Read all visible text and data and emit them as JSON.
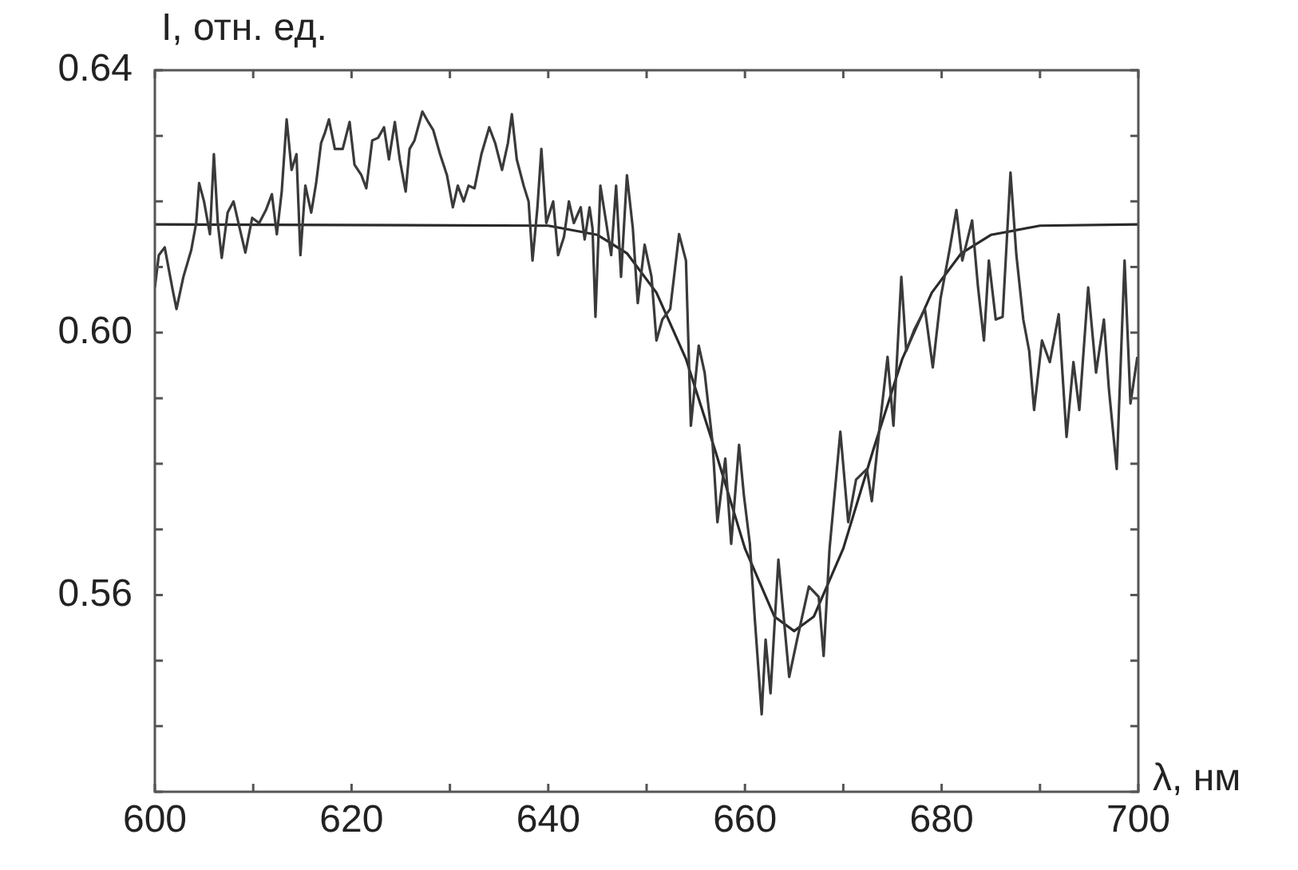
{
  "chart_data": {
    "type": "line",
    "xlabel": "λ, нм",
    "ylabel": "I, отн. ед.",
    "xlim": [
      600,
      700
    ],
    "ylim": [
      0.53,
      0.64
    ],
    "xticks": [
      600,
      {
        "value": 610,
        "label": null
      },
      620,
      {
        "value": 630,
        "label": null
      },
      640,
      {
        "value": 650,
        "label": null
      },
      660,
      {
        "value": 670,
        "label": null
      },
      680,
      {
        "value": 690,
        "label": null
      },
      700
    ],
    "yticks": [
      {
        "value": 0.53,
        "label": null
      },
      {
        "value": 0.54,
        "label": null
      },
      {
        "value": 0.55,
        "label": null
      },
      {
        "value": 0.56,
        "label": "0.56"
      },
      {
        "value": 0.57,
        "label": null
      },
      {
        "value": 0.58,
        "label": null
      },
      {
        "value": 0.59,
        "label": null
      },
      {
        "value": 0.6,
        "label": "0.60"
      },
      {
        "value": 0.61,
        "label": null
      },
      {
        "value": 0.62,
        "label": null
      },
      {
        "value": 0.63,
        "label": null
      },
      {
        "value": 0.64,
        "label": "0.64"
      }
    ],
    "grid": false,
    "legend": false,
    "marker": "none",
    "line_style": "solid",
    "series": [
      {
        "color": "#3a3a3a",
        "x": [
          600,
          600.4,
          601,
          601.8,
          602.2,
          602.9,
          603.7,
          604.2,
          604.5,
          605,
          605.6,
          606,
          606.4,
          606.8,
          607.4,
          608,
          608.5,
          609.2,
          609.9,
          610.6,
          611.3,
          611.9,
          612.4,
          612.9,
          613.4,
          613.9,
          614.4,
          614.8,
          615.3,
          615.9,
          616.4,
          616.9,
          617.3,
          617.7,
          618.3,
          619.1,
          619.8,
          620.3,
          621,
          621.5,
          622.1,
          622.7,
          623.3,
          623.8,
          624.4,
          624.9,
          625.5,
          625.9,
          626.4,
          627.2,
          627.8,
          628.3,
          629,
          629.7,
          630.3,
          630.8,
          631.4,
          631.9,
          632.5,
          633.2,
          634,
          634.6,
          635.3,
          635.9,
          636.3,
          636.8,
          637.5,
          638,
          638.4,
          638.9,
          639.3,
          639.8,
          640.5,
          641,
          641.6,
          642.1,
          642.6,
          643.3,
          643.7,
          644.2,
          644.5,
          644.8,
          645.3,
          645.9,
          646.4,
          646.9,
          647.4,
          648,
          648.6,
          649.1,
          649.8,
          650.5,
          651,
          651.6,
          652.4,
          653.3,
          654,
          654.5,
          655.3,
          655.9,
          656.7,
          657.2,
          658,
          658.6,
          659.4,
          659.9,
          660.5,
          661,
          661.7,
          662.1,
          662.6,
          663.4,
          664.5,
          665.3,
          666.5,
          667.5,
          668,
          668.6,
          669.7,
          670.5,
          671.3,
          672.4,
          672.9,
          673.7,
          674.5,
          675.1,
          675.9,
          676.4,
          677.2,
          678.3,
          679.1,
          679.9,
          680.8,
          681.5,
          682.1,
          683.1,
          683.7,
          684.3,
          684.8,
          685.5,
          686.2,
          687,
          687.6,
          688.3,
          688.9,
          689.4,
          690.2,
          691,
          691.9,
          692.7,
          693.4,
          694,
          694.9,
          695.7,
          696.5,
          697,
          697.8,
          698.6,
          699.2,
          699.9
        ],
        "values": [
          0.6069,
          0.6118,
          0.613,
          0.6066,
          0.6036,
          0.6085,
          0.6126,
          0.6167,
          0.6228,
          0.62,
          0.615,
          0.6272,
          0.6167,
          0.6114,
          0.6183,
          0.62,
          0.6167,
          0.6122,
          0.6175,
          0.6167,
          0.6187,
          0.6211,
          0.615,
          0.6215,
          0.6325,
          0.6248,
          0.6272,
          0.6118,
          0.6224,
          0.6183,
          0.6228,
          0.6289,
          0.6305,
          0.6325,
          0.628,
          0.628,
          0.6321,
          0.6256,
          0.624,
          0.622,
          0.6293,
          0.6297,
          0.6313,
          0.6264,
          0.6321,
          0.6264,
          0.6215,
          0.628,
          0.6293,
          0.6337,
          0.6321,
          0.6309,
          0.6272,
          0.624,
          0.6191,
          0.6224,
          0.62,
          0.6224,
          0.622,
          0.6272,
          0.6313,
          0.6289,
          0.6248,
          0.6289,
          0.6333,
          0.6264,
          0.6224,
          0.62,
          0.611,
          0.6191,
          0.628,
          0.6167,
          0.62,
          0.6118,
          0.6146,
          0.62,
          0.6167,
          0.6191,
          0.6142,
          0.6191,
          0.6159,
          0.6024,
          0.6224,
          0.6167,
          0.6118,
          0.6224,
          0.6085,
          0.624,
          0.6159,
          0.6045,
          0.6134,
          0.6085,
          0.5988,
          0.602,
          0.6036,
          0.615,
          0.611,
          0.5858,
          0.598,
          0.5939,
          0.5833,
          0.5711,
          0.5808,
          0.5678,
          0.5829,
          0.5751,
          0.5678,
          0.5564,
          0.5418,
          0.5532,
          0.545,
          0.5654,
          0.5475,
          0.5532,
          0.5613,
          0.5597,
          0.5507,
          0.567,
          0.5849,
          0.5711,
          0.5776,
          0.5792,
          0.5743,
          0.5857,
          0.5963,
          0.5858,
          0.6085,
          0.5972,
          0.6004,
          0.6036,
          0.5947,
          0.6053,
          0.6126,
          0.6187,
          0.611,
          0.6171,
          0.6069,
          0.5988,
          0.611,
          0.602,
          0.6024,
          0.6244,
          0.6118,
          0.602,
          0.5972,
          0.5882,
          0.5988,
          0.5955,
          0.6028,
          0.5841,
          0.5955,
          0.5882,
          0.6069,
          0.5939,
          0.602,
          0.5915,
          0.5792,
          0.611,
          0.5892,
          0.5963
        ]
      },
      {
        "color": "#2a2a2a",
        "x": [
          600,
          640,
          645,
          648,
          651,
          654,
          657,
          660,
          663,
          665,
          667,
          670,
          673,
          676,
          679,
          682,
          685,
          690,
          700
        ],
        "values": [
          0.6165,
          0.6163,
          0.6149,
          0.6121,
          0.6061,
          0.596,
          0.5819,
          0.5671,
          0.5567,
          0.5545,
          0.5567,
          0.5671,
          0.5819,
          0.596,
          0.6061,
          0.6121,
          0.6149,
          0.6163,
          0.6165
        ]
      }
    ]
  }
}
